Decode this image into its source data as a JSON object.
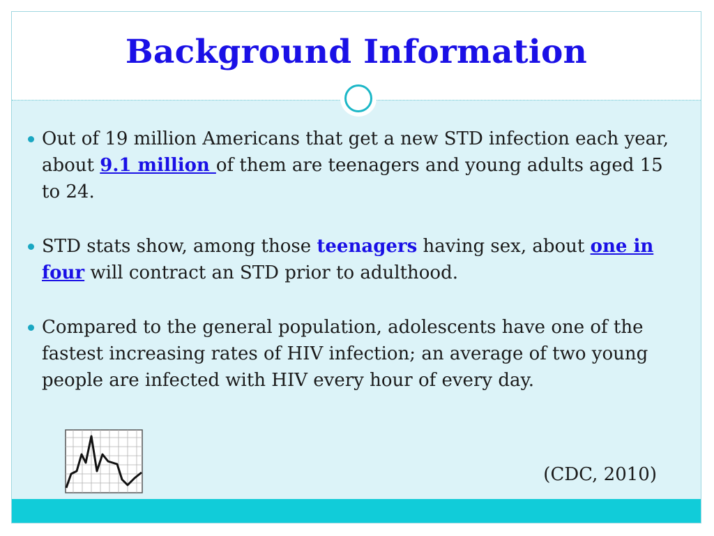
{
  "slide": {
    "title": "Background Information",
    "bullets": [
      {
        "parts": [
          {
            "text": "Out of 19 million Americans that get a new STD infection each year, about ",
            "style": "normal"
          },
          {
            "text": "9.1 million ",
            "style": "bold-blue-underline"
          },
          {
            "text": "of them are teenagers and young adults aged 15 to 24.",
            "style": "normal"
          }
        ]
      },
      {
        "parts": [
          {
            "text": "STD stats show, among those ",
            "style": "normal"
          },
          {
            "text": "teenagers",
            "style": "bold-blue"
          },
          {
            "text": " having sex, about ",
            "style": "normal"
          },
          {
            "text": "one in four",
            "style": "bold-blue-underline"
          },
          {
            "text": " will contract an STD prior to adulthood.",
            "style": "normal"
          }
        ]
      },
      {
        "parts": [
          {
            "text": "Compared to the general population, adolescents have one of the fastest increasing rates of HIV infection; an average of two young people are infected with HIV every hour of every day.",
            "style": "normal"
          }
        ]
      }
    ],
    "citation": "(CDC, 2010)",
    "icon": "line-graph-icon",
    "colors": {
      "title": "#1a10e6",
      "highlight": "#1a10e6",
      "content_background": "#dcf3f8",
      "accent": "#11ccd9",
      "bullet": "#1aa7c2"
    }
  }
}
